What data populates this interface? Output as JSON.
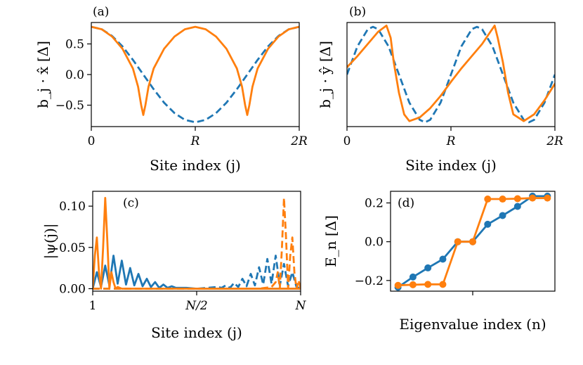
{
  "colors": {
    "blue": "#1f77b4",
    "orange": "#ff7f0e",
    "axis": "#000000"
  },
  "chart_data": [
    {
      "panel": "(a)",
      "type": "line",
      "xlabel": "Site index (j)",
      "ylabel": "b_j · x̂ [Δ]",
      "xlim": [
        0,
        2
      ],
      "ylim": [
        -0.85,
        0.85
      ],
      "xticks": [
        0,
        1,
        2
      ],
      "xtick_labels": [
        "0",
        "R",
        "2R"
      ],
      "yticks": [
        -0.5,
        0.0,
        0.5
      ],
      "ytick_labels": [
        "−0.5",
        "0.0",
        "0.5"
      ],
      "grid": false,
      "series": [
        {
          "color": "#1f77b4",
          "style": "dashed",
          "x": [
            0,
            0.1,
            0.2,
            0.3,
            0.4,
            0.5,
            0.6,
            0.7,
            0.8,
            0.9,
            1.0,
            1.1,
            1.2,
            1.3,
            1.4,
            1.5,
            1.6,
            1.7,
            1.8,
            1.9,
            2.0
          ],
          "y": [
            0.78,
            0.74,
            0.63,
            0.46,
            0.24,
            0.0,
            -0.24,
            -0.46,
            -0.63,
            -0.74,
            -0.78,
            -0.74,
            -0.63,
            -0.46,
            -0.24,
            0.0,
            0.24,
            0.46,
            0.63,
            0.74,
            0.78
          ]
        },
        {
          "color": "#ff7f0e",
          "style": "solid",
          "x": [
            0,
            0.1,
            0.2,
            0.3,
            0.4,
            0.45,
            0.48,
            0.5,
            0.52,
            0.55,
            0.6,
            0.7,
            0.8,
            0.9,
            1.0,
            1.1,
            1.2,
            1.3,
            1.4,
            1.45,
            1.48,
            1.5,
            1.52,
            1.55,
            1.6,
            1.7,
            1.8,
            1.9,
            2.0
          ],
          "y": [
            0.78,
            0.74,
            0.62,
            0.42,
            0.1,
            -0.2,
            -0.5,
            -0.66,
            -0.5,
            -0.2,
            0.1,
            0.42,
            0.62,
            0.74,
            0.78,
            0.74,
            0.62,
            0.42,
            0.1,
            -0.2,
            -0.5,
            -0.66,
            -0.5,
            -0.2,
            0.1,
            0.42,
            0.62,
            0.74,
            0.78
          ]
        }
      ]
    },
    {
      "panel": "(b)",
      "type": "line",
      "xlabel": "Site index (j)",
      "ylabel": "b_j · ŷ [Δ]",
      "xlim": [
        0,
        2
      ],
      "ylim": [
        -0.85,
        0.85
      ],
      "xticks": [
        0,
        1,
        2
      ],
      "xtick_labels": [
        "0",
        "R",
        "2R"
      ],
      "yticks": [],
      "ytick_labels": [],
      "grid": false,
      "series": [
        {
          "color": "#1f77b4",
          "style": "dashed",
          "x": [
            0,
            0.1,
            0.2,
            0.25,
            0.3,
            0.4,
            0.5,
            0.6,
            0.7,
            0.75,
            0.8,
            0.9,
            1.0,
            1.1,
            1.2,
            1.25,
            1.3,
            1.4,
            1.5,
            1.6,
            1.7,
            1.75,
            1.8,
            1.9,
            2.0
          ],
          "y": [
            0.0,
            0.46,
            0.74,
            0.78,
            0.74,
            0.46,
            0.0,
            -0.46,
            -0.74,
            -0.78,
            -0.74,
            -0.46,
            0.0,
            0.46,
            0.74,
            0.78,
            0.74,
            0.46,
            0.0,
            -0.46,
            -0.74,
            -0.78,
            -0.74,
            -0.46,
            0.0
          ]
        },
        {
          "color": "#ff7f0e",
          "style": "solid",
          "x": [
            0,
            0.1,
            0.2,
            0.3,
            0.38,
            0.42,
            0.45,
            0.5,
            0.55,
            0.6,
            0.7,
            0.8,
            0.9,
            1.0,
            1.1,
            1.2,
            1.3,
            1.38,
            1.42,
            1.45,
            1.5,
            1.55,
            1.6,
            1.7,
            1.8,
            1.9,
            2.0
          ],
          "y": [
            0.12,
            0.3,
            0.5,
            0.7,
            0.8,
            0.6,
            0.2,
            -0.3,
            -0.65,
            -0.76,
            -0.7,
            -0.55,
            -0.35,
            -0.12,
            0.1,
            0.3,
            0.5,
            0.7,
            0.8,
            0.6,
            0.2,
            -0.3,
            -0.65,
            -0.76,
            -0.65,
            -0.42,
            -0.15
          ]
        }
      ]
    },
    {
      "panel": "(c)",
      "type": "line",
      "xlabel": "Site index (j)",
      "ylabel": "|ψ(j)|",
      "xlim": [
        0,
        1
      ],
      "ylim": [
        -0.003,
        0.118
      ],
      "xticks": [
        0,
        0.5,
        1
      ],
      "xtick_labels": [
        "1",
        "N/2",
        "N"
      ],
      "yticks": [
        0.0,
        0.05,
        0.1
      ],
      "ytick_labels": [
        "0.00",
        "0.05",
        "0.10"
      ],
      "grid": false,
      "series": [
        {
          "color": "#1f77b4",
          "style": "solid",
          "x": [
            0.0,
            0.02,
            0.04,
            0.06,
            0.08,
            0.1,
            0.12,
            0.14,
            0.16,
            0.18,
            0.2,
            0.22,
            0.24,
            0.26,
            0.28,
            0.3,
            0.32,
            0.34,
            0.36,
            0.38,
            0.4,
            0.45,
            0.5,
            0.55,
            0.6,
            1.0
          ],
          "y": [
            0.0,
            0.02,
            0.002,
            0.028,
            0.004,
            0.04,
            0.006,
            0.034,
            0.005,
            0.025,
            0.004,
            0.018,
            0.003,
            0.012,
            0.002,
            0.008,
            0.001,
            0.005,
            0.001,
            0.003,
            0.001,
            0.001,
            0.0,
            0.0,
            0.0,
            0.0
          ]
        },
        {
          "color": "#1f77b4",
          "style": "dashed",
          "x": [
            0.0,
            0.4,
            0.45,
            0.5,
            0.55,
            0.6,
            0.62,
            0.64,
            0.66,
            0.68,
            0.7,
            0.72,
            0.74,
            0.76,
            0.78,
            0.8,
            0.82,
            0.84,
            0.86,
            0.88,
            0.9,
            0.92,
            0.94,
            0.96,
            0.98,
            1.0
          ],
          "y": [
            0.0,
            0.0,
            0.0,
            0.0,
            0.001,
            0.002,
            0.001,
            0.004,
            0.001,
            0.007,
            0.002,
            0.012,
            0.003,
            0.018,
            0.004,
            0.026,
            0.005,
            0.036,
            0.006,
            0.04,
            0.004,
            0.03,
            0.003,
            0.02,
            0.002,
            0.0
          ]
        },
        {
          "color": "#ff7f0e",
          "style": "solid",
          "x": [
            0.0,
            0.01,
            0.02,
            0.03,
            0.04,
            0.05,
            0.06,
            0.07,
            0.08,
            0.09,
            0.1,
            0.11,
            0.12,
            0.14,
            0.2,
            0.5,
            1.0
          ],
          "y": [
            0.0,
            0.04,
            0.062,
            0.02,
            0.0,
            0.05,
            0.11,
            0.06,
            0.0,
            0.02,
            0.008,
            0.0,
            0.002,
            0.0,
            0.0,
            0.0,
            0.0
          ]
        },
        {
          "color": "#ff7f0e",
          "style": "dashed",
          "x": [
            0.0,
            0.5,
            0.8,
            0.86,
            0.88,
            0.89,
            0.9,
            0.91,
            0.92,
            0.93,
            0.94,
            0.95,
            0.96,
            0.97,
            0.98,
            0.99,
            1.0
          ],
          "y": [
            0.0,
            0.0,
            0.0,
            0.002,
            0.008,
            0.02,
            0.0,
            0.05,
            0.11,
            0.06,
            0.0,
            0.04,
            0.062,
            0.02,
            0.0,
            0.01,
            0.0
          ]
        }
      ]
    },
    {
      "panel": "(d)",
      "type": "line",
      "xlabel": "Eigenvalue index (n)",
      "ylabel": "E_n [Δ]",
      "xlim": [
        -0.5,
        10.5
      ],
      "ylim": [
        -0.255,
        0.26
      ],
      "xticks": [
        5
      ],
      "xtick_labels": [
        ""
      ],
      "yticks": [
        -0.2,
        0.0,
        0.2
      ],
      "ytick_labels": [
        "−0.2",
        "0.0",
        "0.2"
      ],
      "grid": false,
      "series": [
        {
          "color": "#1f77b4",
          "style": "solid",
          "marker": "circle",
          "x": [
            0,
            1,
            2,
            3,
            4,
            5,
            6,
            7,
            8,
            9,
            10
          ],
          "y": [
            -0.235,
            -0.182,
            -0.135,
            -0.09,
            0.0,
            0.0,
            0.09,
            0.135,
            0.182,
            0.235,
            0.235
          ]
        },
        {
          "color": "#ff7f0e",
          "style": "solid",
          "marker": "circle",
          "x": [
            0,
            1,
            2,
            3,
            4,
            5,
            6,
            7,
            8,
            9,
            10
          ],
          "y": [
            -0.225,
            -0.222,
            -0.22,
            -0.22,
            0.0,
            0.0,
            0.22,
            0.22,
            0.222,
            0.225,
            0.225
          ]
        }
      ]
    }
  ]
}
